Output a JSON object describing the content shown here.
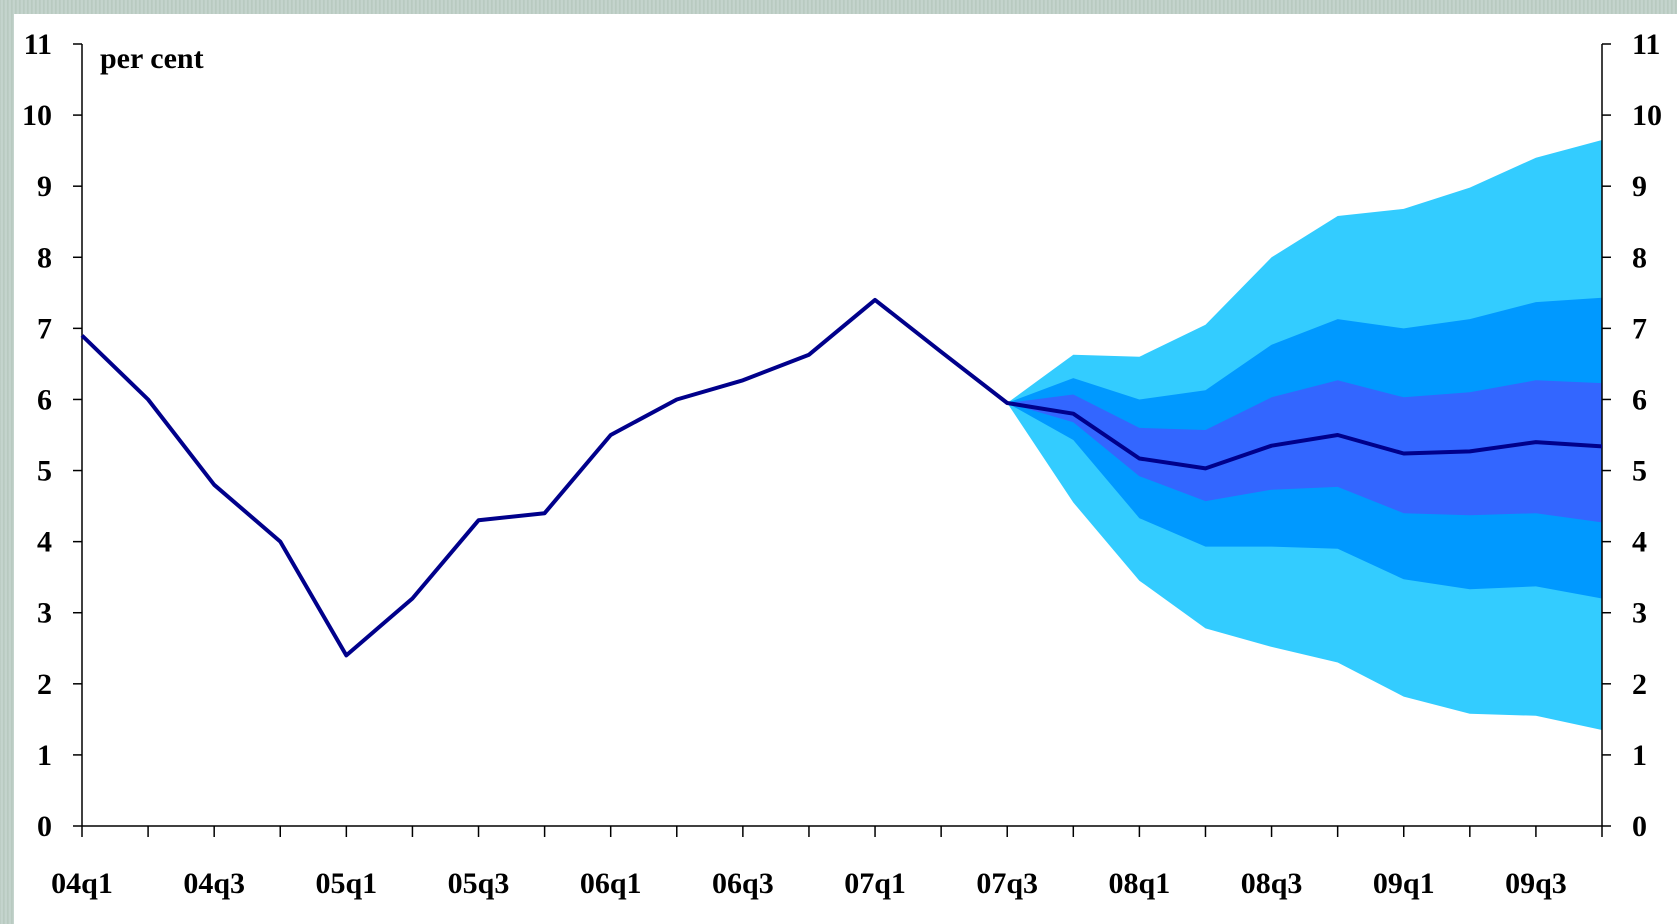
{
  "chart_data": {
    "type": "line",
    "unit_label": "per cent",
    "ylim": [
      0,
      11
    ],
    "y_ticks": [
      0,
      1,
      2,
      3,
      4,
      5,
      6,
      7,
      8,
      9,
      10,
      11
    ],
    "x": [
      "04q1",
      "04q2",
      "04q3",
      "04q4",
      "05q1",
      "05q2",
      "05q3",
      "05q4",
      "06q1",
      "06q2",
      "06q3",
      "06q4",
      "07q1",
      "07q2",
      "07q3",
      "07q4",
      "08q1",
      "08q2",
      "08q3",
      "08q4",
      "09q1",
      "09q2",
      "09q3",
      "09q4"
    ],
    "x_tick_labels": [
      "04q1",
      "04q3",
      "05q1",
      "05q3",
      "06q1",
      "06q3",
      "07q1",
      "07q3",
      "08q1",
      "08q3",
      "09q1",
      "09q3"
    ],
    "grid": false,
    "series": [
      {
        "values": [
          6.9,
          6.0,
          4.8,
          4.0,
          2.4,
          3.2,
          4.3,
          4.4,
          5.5,
          6.0,
          6.27,
          6.63,
          7.4,
          6.67,
          5.95,
          5.8,
          5.17,
          5.03,
          5.35,
          5.5,
          5.24,
          5.27,
          5.4,
          5.34
        ],
        "color": "#00008b"
      }
    ],
    "fan": {
      "x": [
        "07q3",
        "07q4",
        "08q1",
        "08q2",
        "08q3",
        "08q4",
        "09q1",
        "09q2",
        "09q3",
        "09q4"
      ],
      "bands": [
        {
          "color": "#33ccff",
          "upper": [
            5.95,
            6.63,
            6.6,
            7.05,
            8.0,
            8.58,
            8.68,
            8.98,
            9.4,
            9.65
          ],
          "lower": [
            5.95,
            4.55,
            3.45,
            2.78,
            2.52,
            2.3,
            1.82,
            1.58,
            1.55,
            1.35
          ]
        },
        {
          "color": "#0099ff",
          "upper": [
            5.95,
            6.3,
            6.0,
            6.13,
            6.77,
            7.13,
            7.0,
            7.13,
            7.37,
            7.43
          ],
          "lower": [
            5.95,
            5.43,
            4.33,
            3.93,
            3.93,
            3.9,
            3.47,
            3.33,
            3.37,
            3.2
          ]
        },
        {
          "color": "#3366ff",
          "upper": [
            5.95,
            6.07,
            5.6,
            5.57,
            6.03,
            6.27,
            6.03,
            6.1,
            6.27,
            6.23
          ],
          "lower": [
            5.95,
            5.68,
            4.92,
            4.57,
            4.73,
            4.77,
            4.4,
            4.37,
            4.4,
            4.27
          ]
        }
      ]
    }
  }
}
